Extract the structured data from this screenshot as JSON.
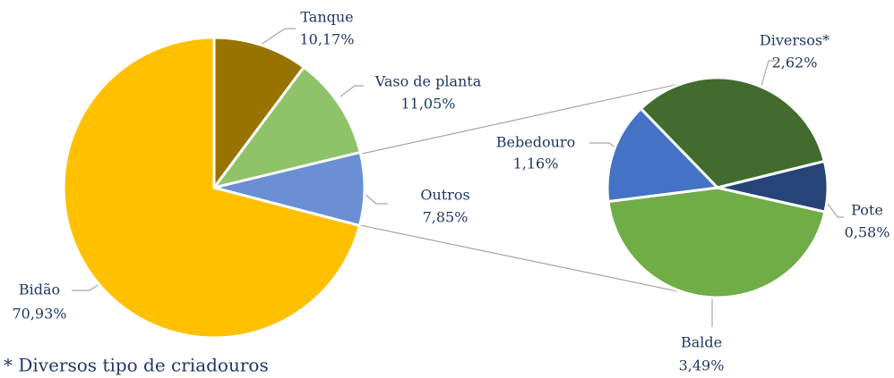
{
  "chart_data": [
    {
      "type": "pie",
      "categories": [
        "Tanque",
        "Vaso de planta",
        "Outros",
        "Bidão"
      ],
      "values": [
        10.17,
        11.05,
        7.85,
        70.93
      ],
      "value_labels": [
        "10,17%",
        "11,05%",
        "7,85%",
        "70,93%"
      ],
      "colors": [
        "#997300",
        "#8fc36a",
        "#6b8fd4",
        "#ffc000"
      ],
      "annotation": "* Diversos tipo de criadouros"
    },
    {
      "type": "pie",
      "categories": [
        "Balde",
        "Bebedouro",
        "Diversos*",
        "Pote"
      ],
      "values": [
        3.49,
        1.16,
        2.62,
        0.58
      ],
      "value_labels": [
        "3,49%",
        "1,16%",
        "2,62%",
        "0,58%"
      ],
      "colors": [
        "#70ad47",
        "#4472c4",
        "#426b2d",
        "#264478"
      ]
    }
  ]
}
